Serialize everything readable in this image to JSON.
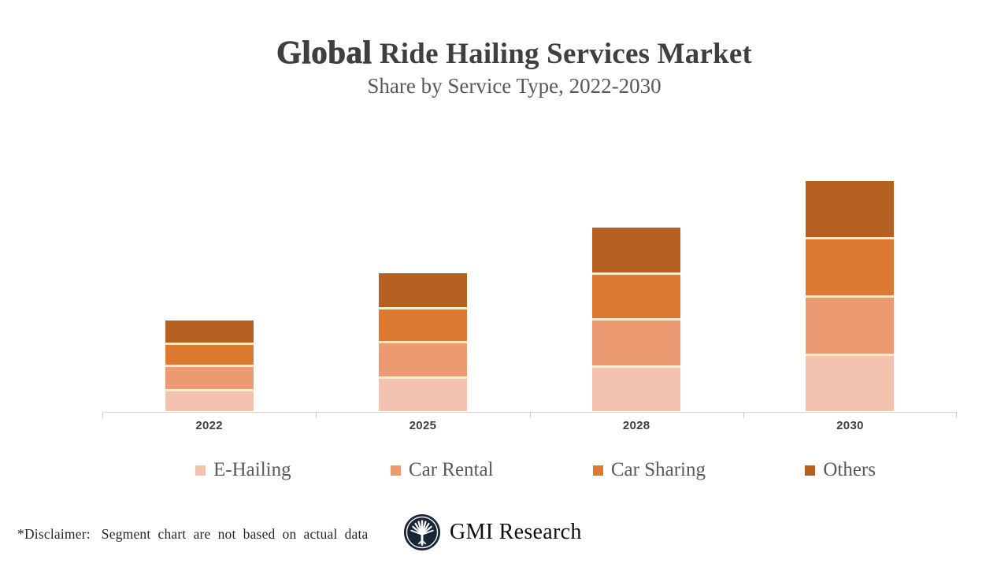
{
  "header": {
    "title_emphasis": "Global",
    "title_rest": " Ride Hailing Services Market",
    "subtitle": "Share by Service Type, 2022-2030"
  },
  "chart_data": {
    "type": "bar",
    "stacked": true,
    "title": "Global Ride Hailing Services Market",
    "subtitle": "Share by Service Type, 2022-2030",
    "xlabel": "",
    "ylabel": "",
    "y_axis_visible": false,
    "grid": false,
    "legend_position": "bottom",
    "categories": [
      "2022",
      "2025",
      "2028",
      "2030"
    ],
    "series": [
      {
        "name": "E-Hailing",
        "color": "#F4C3AF",
        "values": [
          28,
          44,
          58,
          73
        ]
      },
      {
        "name": "Car Rental",
        "color": "#EC9A72",
        "values": [
          31,
          45,
          60,
          74
        ]
      },
      {
        "name": "Car Sharing",
        "color": "#DE7931",
        "values": [
          28,
          43,
          58,
          74
        ]
      },
      {
        "name": "Others",
        "color": "#B55F20",
        "values": [
          28,
          43,
          57,
          71
        ]
      }
    ],
    "segment_divider_color": "#F5ECCA",
    "axis_color": "#D7D7D7",
    "stack_order_bottom_to_top": [
      "E-Hailing",
      "Car Rental",
      "Car Sharing",
      "Others"
    ]
  },
  "footer": {
    "disclaimer_prefix": "*Disclaimer:",
    "disclaimer_text": "Segment chart are not based on actual data",
    "brand_name": "GMI Research"
  }
}
